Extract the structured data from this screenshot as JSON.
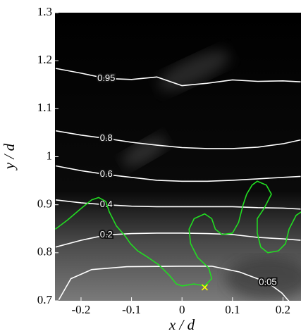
{
  "chart_data": {
    "type": "line",
    "xlabel": "x / d",
    "ylabel": "y / d",
    "xlim": [
      -0.2516,
      0.2357
    ],
    "ylim": [
      0.7,
      1.3
    ],
    "xticks": [
      -0.2,
      -0.1,
      0,
      0.1,
      0.2
    ],
    "yticks": [
      0.7,
      0.8,
      0.9,
      1,
      1.1,
      1.2,
      1.3
    ],
    "series": [
      {
        "name": "0.95",
        "color": "#ffffff",
        "x": [
          -0.25,
          -0.2,
          -0.15,
          -0.1,
          -0.05,
          0,
          0.05,
          0.1,
          0.15,
          0.2,
          0.235
        ],
        "values": [
          1.184,
          1.174,
          1.163,
          1.161,
          1.166,
          1.148,
          1.153,
          1.16,
          1.157,
          1.158,
          1.156
        ]
      },
      {
        "name": "0.8",
        "color": "#ffffff",
        "x": [
          -0.25,
          -0.2,
          -0.15,
          -0.1,
          -0.05,
          0,
          0.05,
          0.1,
          0.15,
          0.2,
          0.235
        ],
        "values": [
          1.054,
          1.045,
          1.038,
          1.03,
          1.024,
          1.019,
          1.017,
          1.017,
          1.02,
          1.027,
          1.035
        ]
      },
      {
        "name": "0.6",
        "color": "#ffffff",
        "x": [
          -0.25,
          -0.2,
          -0.15,
          -0.1,
          -0.05,
          0,
          0.05,
          0.1,
          0.15,
          0.2,
          0.235
        ],
        "values": [
          0.981,
          0.971,
          0.963,
          0.957,
          0.951,
          0.949,
          0.949,
          0.951,
          0.954,
          0.957,
          0.959
        ]
      },
      {
        "name": "0.4",
        "color": "#ffffff",
        "x": [
          -0.25,
          -0.2,
          -0.15,
          -0.1,
          -0.05,
          0,
          0.05,
          0.1,
          0.15,
          0.2,
          0.235
        ],
        "values": [
          0.91,
          0.904,
          0.9,
          0.897,
          0.896,
          0.896,
          0.896,
          0.896,
          0.894,
          0.893,
          0.891
        ]
      },
      {
        "name": "0.2",
        "color": "#ffffff",
        "x": [
          -0.25,
          -0.2,
          -0.15,
          -0.1,
          -0.05,
          0,
          0.05,
          0.1,
          0.15,
          0.2,
          0.235
        ],
        "values": [
          0.812,
          0.826,
          0.837,
          0.84,
          0.841,
          0.841,
          0.84,
          0.838,
          0.832,
          0.829,
          0.826
        ]
      },
      {
        "name": "0.05",
        "color": "#ffffff",
        "x": [
          -0.244,
          -0.22,
          -0.179,
          -0.109,
          0,
          0.059,
          0.114,
          0.17,
          0.198,
          0.212
        ],
        "values": [
          0.702,
          0.746,
          0.765,
          0.771,
          0.772,
          0.772,
          0.76,
          0.738,
          0.716,
          0.699
        ]
      },
      {
        "color": "#22dd22",
        "x": [
          -0.251,
          -0.227,
          -0.199,
          -0.179,
          -0.165,
          -0.151,
          -0.144,
          -0.13,
          -0.112,
          -0.102,
          -0.088,
          -0.067,
          -0.046,
          -0.025,
          -0.011,
          0,
          0.024,
          0.045,
          0.059,
          0.053,
          0.031,
          0.017,
          0.014,
          0.024,
          0.045,
          0.059,
          0.066,
          0.079,
          0.1,
          0.112,
          0.121,
          0.128,
          0.139,
          0.149,
          0.167,
          0.177,
          0.163,
          0.149,
          0.149,
          0.156,
          0.17,
          0.191,
          0.205,
          0.212,
          0.226,
          0.236
        ],
        "values": [
          0.849,
          0.868,
          0.893,
          0.91,
          0.915,
          0.907,
          0.885,
          0.856,
          0.834,
          0.819,
          0.804,
          0.79,
          0.775,
          0.753,
          0.735,
          0.731,
          0.735,
          0.731,
          0.746,
          0.768,
          0.79,
          0.819,
          0.849,
          0.871,
          0.881,
          0.871,
          0.849,
          0.838,
          0.841,
          0.863,
          0.9,
          0.922,
          0.941,
          0.949,
          0.941,
          0.922,
          0.893,
          0.871,
          0.841,
          0.812,
          0.8,
          0.804,
          0.819,
          0.849,
          0.878,
          0.885
        ]
      },
      {
        "color": "#ffff00",
        "marker": "x",
        "x": [
          0.045
        ],
        "values": [
          0.728
        ]
      }
    ]
  }
}
